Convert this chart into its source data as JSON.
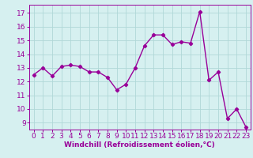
{
  "x": [
    0,
    1,
    2,
    3,
    4,
    5,
    6,
    7,
    8,
    9,
    10,
    11,
    12,
    13,
    14,
    15,
    16,
    17,
    18,
    19,
    20,
    21,
    22,
    23
  ],
  "y": [
    12.5,
    13.0,
    12.4,
    13.1,
    13.2,
    13.1,
    12.7,
    12.7,
    12.3,
    11.4,
    11.8,
    13.0,
    14.6,
    15.4,
    15.4,
    14.7,
    14.9,
    14.8,
    17.1,
    12.1,
    12.7,
    9.3,
    10.0,
    8.7
  ],
  "line_color": "#990099",
  "marker": "D",
  "marker_size": 2.2,
  "bg_color": "#d6f0f0",
  "grid_color": "#b0d8d8",
  "xlabel": "Windchill (Refroidissement éolien,°C)",
  "ylim": [
    8.5,
    17.6
  ],
  "xlim": [
    -0.5,
    23.5
  ],
  "yticks": [
    9,
    10,
    11,
    12,
    13,
    14,
    15,
    16,
    17
  ],
  "xticks": [
    0,
    1,
    2,
    3,
    4,
    5,
    6,
    7,
    8,
    9,
    10,
    11,
    12,
    13,
    14,
    15,
    16,
    17,
    18,
    19,
    20,
    21,
    22,
    23
  ],
  "xlabel_fontsize": 6.5,
  "tick_fontsize": 6.5,
  "line_width": 1.0,
  "axis_color": "#990099"
}
